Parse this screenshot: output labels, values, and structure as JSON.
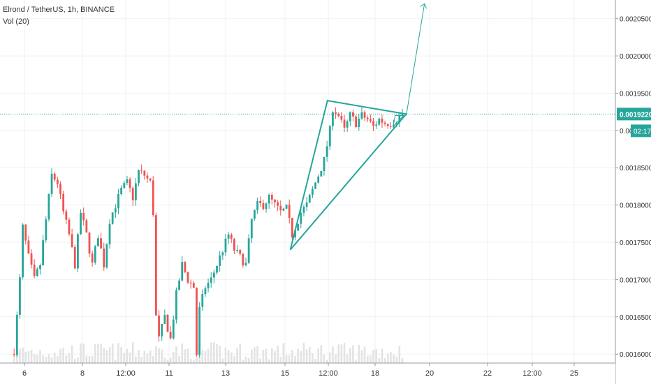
{
  "header": {
    "symbol": "Elrond / TetherUS, 1h, BINANCE",
    "volume_label": "Vol (20)"
  },
  "price_axis": {
    "ticks": [
      "0.0020500",
      "0.0020000",
      "0.0019500",
      "0.0019000",
      "0.0018500",
      "0.0018000",
      "0.0017500",
      "0.0017000",
      "0.0016500",
      "0.0016000"
    ],
    "tick_values": [
      0.00205,
      0.002,
      0.00195,
      0.0019,
      0.00185,
      0.0018,
      0.00175,
      0.0017,
      0.00165,
      0.0016
    ],
    "current_price_label": "0.0019220",
    "current_price": 0.001922,
    "countdown_label": "02:17"
  },
  "time_axis": {
    "labels": [
      "6",
      "8",
      "12:00",
      "11",
      "13",
      "15",
      "12:00",
      "18",
      "20",
      "22",
      "12:00",
      "25"
    ]
  },
  "colors": {
    "up": "#26a69a",
    "down": "#ef5350",
    "pattern": "#26a69a",
    "volume": "#e3e3e3",
    "price_line": "#26a69a",
    "grid": "#eef1f4"
  },
  "chart_data": {
    "type": "candlestick",
    "title": "Elrond / TetherUS, 1h, BINANCE",
    "y_range": [
      0.001588,
      0.002075
    ],
    "price_keypoints": [
      [
        0,
        0.0016
      ],
      [
        1,
        0.001605
      ],
      [
        2,
        0.00165
      ],
      [
        3,
        0.0017
      ],
      [
        4,
        0.00177
      ],
      [
        6,
        0.00173
      ],
      [
        8,
        0.0017
      ],
      [
        10,
        0.00172
      ],
      [
        12,
        0.00178
      ],
      [
        14,
        0.00184
      ],
      [
        16,
        0.00183
      ],
      [
        18,
        0.00179
      ],
      [
        20,
        0.00176
      ],
      [
        22,
        0.00172
      ],
      [
        24,
        0.00179
      ],
      [
        26,
        0.00176
      ],
      [
        28,
        0.00172
      ],
      [
        30,
        0.00176
      ],
      [
        32,
        0.00172
      ],
      [
        34,
        0.00178
      ],
      [
        36,
        0.0018
      ],
      [
        38,
        0.00182
      ],
      [
        40,
        0.00183
      ],
      [
        42,
        0.00181
      ],
      [
        44,
        0.001845
      ],
      [
        46,
        0.00184
      ],
      [
        48,
        0.00183
      ],
      [
        49,
        0.00179
      ],
      [
        50,
        0.00165
      ],
      [
        51,
        0.00162
      ],
      [
        53,
        0.00165
      ],
      [
        55,
        0.00162
      ],
      [
        57,
        0.00168
      ],
      [
        59,
        0.00172
      ],
      [
        61,
        0.0017
      ],
      [
        63,
        0.00169
      ],
      [
        64,
        0.0016
      ],
      [
        65,
        0.00166
      ],
      [
        67,
        0.00169
      ],
      [
        69,
        0.0017
      ],
      [
        71,
        0.00172
      ],
      [
        73,
        0.00174
      ],
      [
        75,
        0.00176
      ],
      [
        77,
        0.00174
      ],
      [
        79,
        0.00173
      ],
      [
        81,
        0.00172
      ],
      [
        83,
        0.00178
      ],
      [
        85,
        0.0018
      ],
      [
        87,
        0.0018
      ],
      [
        89,
        0.00181
      ],
      [
        91,
        0.0018
      ],
      [
        93,
        0.00179
      ],
      [
        95,
        0.001795
      ],
      [
        97,
        0.00176
      ],
      [
        98,
        0.00177
      ],
      [
        100,
        0.00179
      ],
      [
        102,
        0.0018
      ],
      [
        104,
        0.00182
      ],
      [
        106,
        0.00184
      ],
      [
        108,
        0.00186
      ],
      [
        110,
        0.0019
      ],
      [
        111,
        0.00193
      ],
      [
        113,
        0.00192
      ],
      [
        115,
        0.0019
      ],
      [
        117,
        0.00192
      ],
      [
        119,
        0.00191
      ],
      [
        121,
        0.00192
      ],
      [
        123,
        0.001915
      ],
      [
        125,
        0.001905
      ],
      [
        127,
        0.001915
      ],
      [
        129,
        0.00191
      ],
      [
        131,
        0.00191
      ],
      [
        133,
        0.001915
      ],
      [
        135,
        0.001922
      ]
    ],
    "volume_baseline": 0.00159,
    "triangle": [
      [
        0.446,
        0.00174
      ],
      [
        0.503,
        0.00194
      ],
      [
        0.624,
        0.001922
      ]
    ],
    "inner_triangle": [
      [
        0.604,
        0.001905
      ],
      [
        0.62,
        0.00192
      ],
      [
        0.607,
        0.00192
      ]
    ],
    "projection": [
      [
        0.624,
        0.00192
      ],
      [
        0.652,
        0.00207
      ]
    ]
  }
}
